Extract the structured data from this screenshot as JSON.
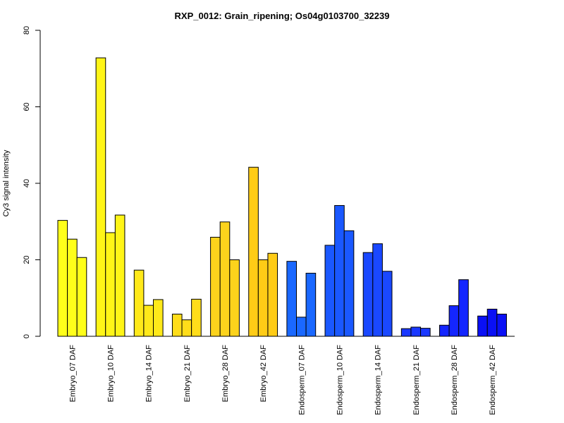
{
  "chart_data": {
    "type": "bar",
    "title": "RXP_0012: Grain_ripening; Os04g0103700_32239",
    "xlabel": "",
    "ylabel": "Cy3 signal intensity",
    "ylim": [
      0,
      80
    ],
    "yticks": [
      0,
      20,
      40,
      60,
      80
    ],
    "grid": false,
    "legend": "none",
    "replicates_per_group": 3,
    "categories": [
      "Embryo_07 DAF",
      "Embryo_10 DAF",
      "Embryo_14 DAF",
      "Embryo_21 DAF",
      "Embryo_28 DAF",
      "Embryo_42 DAF",
      "Endosperm_07 DAF",
      "Endosperm_10 DAF",
      "Endosperm_14 DAF",
      "Endosperm_21 DAF",
      "Endosperm_28 DAF",
      "Endosperm_42 DAF"
    ],
    "group_colors": [
      "#ffff1a",
      "#fff517",
      "#ffe91a",
      "#ffdd1a",
      "#fcd31c",
      "#ffcc16",
      "#1a68ff",
      "#1a58ff",
      "#1a48ff",
      "#1a38ff",
      "#1426ff",
      "#0a10f5"
    ],
    "values": [
      [
        30.3,
        25.4,
        20.6
      ],
      [
        72.8,
        27.1,
        31.7
      ],
      [
        17.3,
        8.1,
        9.6
      ],
      [
        5.8,
        4.3,
        9.7
      ],
      [
        25.9,
        29.9,
        20.0
      ],
      [
        44.2,
        20.0,
        21.7
      ],
      [
        19.6,
        5.0,
        16.5
      ],
      [
        23.8,
        34.2,
        27.6
      ],
      [
        21.9,
        24.2,
        17.0
      ],
      [
        2.0,
        2.4,
        2.1
      ],
      [
        2.9,
        8.0,
        14.8
      ],
      [
        5.3,
        7.1,
        5.8
      ]
    ]
  }
}
